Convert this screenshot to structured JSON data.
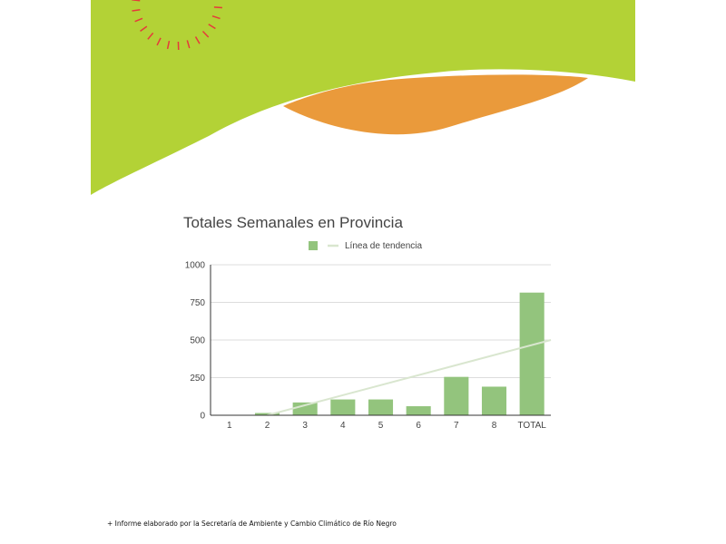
{
  "colors": {
    "green_band": "#b3d236",
    "orange_band": "#ea9a3b",
    "sun_rays": "#e53a3a",
    "bar": "#93c47d",
    "trendline": "#d9e6cf",
    "grid": "#dddddd",
    "axis": "#333333"
  },
  "decor": {
    "sun": "sun-rays-icon"
  },
  "chart_data": {
    "type": "bar",
    "title": "Totales Semanales en Provincia",
    "categories": [
      "1",
      "2",
      "3",
      "4",
      "5",
      "6",
      "7",
      "8",
      "TOTAL"
    ],
    "series": [
      {
        "name": "",
        "values": [
          0,
          15,
          85,
          105,
          105,
          60,
          255,
          190,
          815
        ]
      }
    ],
    "trendline": {
      "label": "Línea de tendencia",
      "start": [
        2,
        0
      ],
      "end": [
        9,
        500
      ]
    },
    "legend": {
      "position": "top"
    },
    "ylim": [
      0,
      1000
    ],
    "yticks": [
      0,
      250,
      500,
      750,
      1000
    ],
    "grid": true,
    "xlabel": "",
    "ylabel": ""
  },
  "footnote": "+ Informe elaborado por la Secretaría de Ambiente y Cambio Climático de Río Negro"
}
